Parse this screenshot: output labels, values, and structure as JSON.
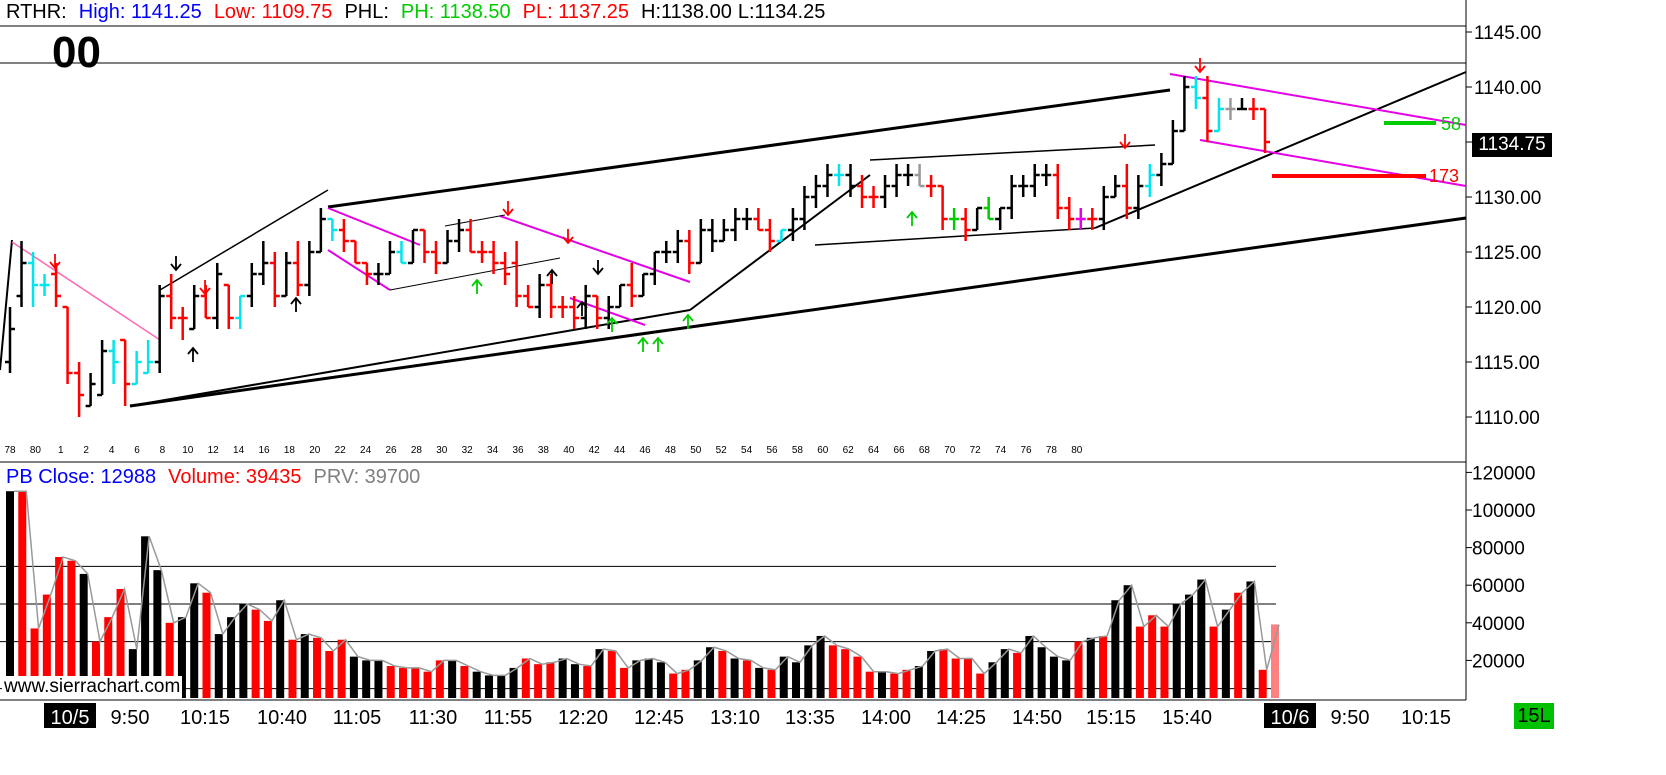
{
  "header": {
    "symbol": "RTHR:",
    "high": "High: 1141.25",
    "low": "Low: 1109.75",
    "phl": "PHL:",
    "ph": "PH: 1138.50",
    "pl": "PL: 1137.25",
    "h": "H:1138.00",
    "l": "L:1134.25"
  },
  "big_label": "00",
  "last_price": "1134.75",
  "annotations": {
    "green": "58",
    "red": "173"
  },
  "volume_header": {
    "pb_close": "PB Close: 12988",
    "volume": "Volume: 39435",
    "prv": "PRV: 39700"
  },
  "watermark": "www.sierrachart.com",
  "timeframe": "15L",
  "colors": {
    "up": "#000000",
    "down": "#ff0000",
    "inside": "#00e5ee",
    "outside": "#e600e6",
    "neutral": "#999999",
    "green": "#00cc00",
    "blue": "#0000ff"
  },
  "chart_data": [
    {
      "type": "ohlc",
      "y_ticks": [
        1145,
        1140,
        1135,
        1130,
        1125,
        1120,
        1115,
        1110
      ],
      "y_tick_labels": [
        "1145.00",
        "1140.00",
        "1135.00",
        "1130.00",
        "1125.00",
        "1120.00",
        "1115.00",
        "1110.00"
      ],
      "ylim": [
        1105.9,
        1147.1
      ],
      "bar_labels": [
        "78",
        "80",
        "1",
        "2",
        "4",
        "6",
        "8",
        "10",
        "12",
        "14",
        "16",
        "18",
        "20",
        "22",
        "24",
        "26",
        "28",
        "30",
        "32",
        "34",
        "36",
        "38",
        "40",
        "42",
        "44",
        "46",
        "48",
        "50",
        "52",
        "54",
        "56",
        "58",
        "60",
        "62",
        "64",
        "66",
        "68",
        "70",
        "72",
        "74",
        "76",
        "78",
        "80"
      ],
      "time_labels": [
        "10/5",
        "9:50",
        "10:15",
        "10:40",
        "11:05",
        "11:30",
        "11:55",
        "12:20",
        "12:45",
        "13:10",
        "13:35",
        "14:00",
        "14:25",
        "14:50",
        "15:15",
        "15:40",
        "10/6",
        "9:50",
        "10:15"
      ],
      "bars": [
        {
          "o": 1115,
          "h": 1120,
          "l": 1114,
          "c": 1118,
          "t": "up"
        },
        {
          "o": 1121,
          "h": 1126,
          "l": 1120,
          "c": 1124,
          "t": "up"
        },
        {
          "o": 1124,
          "h": 1125,
          "l": 1120,
          "c": 1122,
          "t": "inside"
        },
        {
          "o": 1122,
          "h": 1123,
          "l": 1121,
          "c": 1122,
          "t": "inside"
        },
        {
          "o": 1123,
          "h": 1124,
          "l": 1120,
          "c": 1121,
          "t": "down"
        },
        {
          "o": 1120,
          "h": 1120,
          "l": 1113,
          "c": 1114,
          "t": "down"
        },
        {
          "o": 1114,
          "h": 1115,
          "l": 1110,
          "c": 1112,
          "t": "down"
        },
        {
          "o": 1111,
          "h": 1114,
          "l": 1111,
          "c": 1113,
          "t": "up"
        },
        {
          "o": 1112,
          "h": 1117,
          "l": 1112,
          "c": 1116,
          "t": "up"
        },
        {
          "o": 1116,
          "h": 1117,
          "l": 1113,
          "c": 1115,
          "t": "inside"
        },
        {
          "o": 1117,
          "h": 1117,
          "l": 1111,
          "c": 1113,
          "t": "down"
        },
        {
          "o": 1113,
          "h": 1116,
          "l": 1113,
          "c": 1115,
          "t": "inside"
        },
        {
          "o": 1114,
          "h": 1117,
          "l": 1114,
          "c": 1115,
          "t": "inside"
        },
        {
          "o": 1115,
          "h": 1122,
          "l": 1114,
          "c": 1121,
          "t": "up"
        },
        {
          "o": 1121,
          "h": 1123,
          "l": 1118,
          "c": 1119,
          "t": "down"
        },
        {
          "o": 1119,
          "h": 1120,
          "l": 1117,
          "c": 1119,
          "t": "down"
        },
        {
          "o": 1118,
          "h": 1122,
          "l": 1118,
          "c": 1121,
          "t": "up"
        },
        {
          "o": 1121,
          "h": 1122,
          "l": 1119,
          "c": 1119,
          "t": "down"
        },
        {
          "o": 1119,
          "h": 1124,
          "l": 1118,
          "c": 1123,
          "t": "up"
        },
        {
          "o": 1122,
          "h": 1122,
          "l": 1118,
          "c": 1119,
          "t": "down"
        },
        {
          "o": 1119,
          "h": 1121,
          "l": 1118,
          "c": 1121,
          "t": "inside"
        },
        {
          "o": 1121,
          "h": 1124,
          "l": 1120,
          "c": 1123,
          "t": "up"
        },
        {
          "o": 1123,
          "h": 1126,
          "l": 1122,
          "c": 1124,
          "t": "up"
        },
        {
          "o": 1124,
          "h": 1125,
          "l": 1120,
          "c": 1121,
          "t": "down"
        },
        {
          "o": 1121,
          "h": 1125,
          "l": 1121,
          "c": 1124,
          "t": "up"
        },
        {
          "o": 1124,
          "h": 1126,
          "l": 1121,
          "c": 1122,
          "t": "down"
        },
        {
          "o": 1122,
          "h": 1126,
          "l": 1121,
          "c": 1125,
          "t": "up"
        },
        {
          "o": 1125,
          "h": 1129,
          "l": 1125,
          "c": 1128,
          "t": "up"
        },
        {
          "o": 1128,
          "h": 1128,
          "l": 1126,
          "c": 1127,
          "t": "inside"
        },
        {
          "o": 1127,
          "h": 1128,
          "l": 1125,
          "c": 1126,
          "t": "down"
        },
        {
          "o": 1126,
          "h": 1126,
          "l": 1124,
          "c": 1124,
          "t": "down"
        },
        {
          "o": 1124,
          "h": 1124,
          "l": 1122,
          "c": 1123,
          "t": "down"
        },
        {
          "o": 1123,
          "h": 1124,
          "l": 1122,
          "c": 1123,
          "t": "up"
        },
        {
          "o": 1123,
          "h": 1126,
          "l": 1123,
          "c": 1125,
          "t": "up"
        },
        {
          "o": 1125,
          "h": 1126,
          "l": 1124,
          "c": 1124,
          "t": "inside"
        },
        {
          "o": 1124,
          "h": 1127,
          "l": 1124,
          "c": 1127,
          "t": "up"
        },
        {
          "o": 1127,
          "h": 1127,
          "l": 1124,
          "c": 1125,
          "t": "down"
        },
        {
          "o": 1125,
          "h": 1126,
          "l": 1123,
          "c": 1124,
          "t": "down"
        },
        {
          "o": 1124,
          "h": 1127,
          "l": 1124,
          "c": 1126,
          "t": "up"
        },
        {
          "o": 1126,
          "h": 1128,
          "l": 1125,
          "c": 1127,
          "t": "up"
        },
        {
          "o": 1127,
          "h": 1128,
          "l": 1125,
          "c": 1125,
          "t": "down"
        },
        {
          "o": 1125,
          "h": 1126,
          "l": 1124,
          "c": 1125,
          "t": "down"
        },
        {
          "o": 1125,
          "h": 1126,
          "l": 1123,
          "c": 1124,
          "t": "down"
        },
        {
          "o": 1124,
          "h": 1125,
          "l": 1122,
          "c": 1123,
          "t": "down"
        },
        {
          "o": 1124,
          "h": 1126,
          "l": 1120,
          "c": 1121,
          "t": "down"
        },
        {
          "o": 1121,
          "h": 1122,
          "l": 1120,
          "c": 1120,
          "t": "down"
        },
        {
          "o": 1120,
          "h": 1123,
          "l": 1119,
          "c": 1122,
          "t": "up"
        },
        {
          "o": 1122,
          "h": 1123,
          "l": 1119,
          "c": 1120,
          "t": "down"
        },
        {
          "o": 1120,
          "h": 1121,
          "l": 1119,
          "c": 1120,
          "t": "down"
        },
        {
          "o": 1120,
          "h": 1121,
          "l": 1118,
          "c": 1119,
          "t": "down"
        },
        {
          "o": 1119,
          "h": 1122,
          "l": 1118,
          "c": 1121,
          "t": "up"
        },
        {
          "o": 1121,
          "h": 1121,
          "l": 1118,
          "c": 1119,
          "t": "down"
        },
        {
          "o": 1119,
          "h": 1121,
          "l": 1118,
          "c": 1120,
          "t": "up"
        },
        {
          "o": 1120,
          "h": 1122,
          "l": 1120,
          "c": 1122,
          "t": "up"
        },
        {
          "o": 1122,
          "h": 1124,
          "l": 1120,
          "c": 1121,
          "t": "down"
        },
        {
          "o": 1121,
          "h": 1123,
          "l": 1121,
          "c": 1123,
          "t": "up"
        },
        {
          "o": 1123,
          "h": 1125,
          "l": 1122,
          "c": 1125,
          "t": "up"
        },
        {
          "o": 1125,
          "h": 1126,
          "l": 1124,
          "c": 1125,
          "t": "up"
        },
        {
          "o": 1125,
          "h": 1127,
          "l": 1124,
          "c": 1126,
          "t": "up"
        },
        {
          "o": 1126,
          "h": 1127,
          "l": 1123,
          "c": 1124,
          "t": "down"
        },
        {
          "o": 1124,
          "h": 1128,
          "l": 1124,
          "c": 1127,
          "t": "up"
        },
        {
          "o": 1127,
          "h": 1128,
          "l": 1125,
          "c": 1126,
          "t": "up"
        },
        {
          "o": 1126,
          "h": 1128,
          "l": 1126,
          "c": 1127,
          "t": "up"
        },
        {
          "o": 1127,
          "h": 1129,
          "l": 1126,
          "c": 1128,
          "t": "up"
        },
        {
          "o": 1128,
          "h": 1129,
          "l": 1127,
          "c": 1128,
          "t": "up"
        },
        {
          "o": 1128,
          "h": 1129,
          "l": 1127,
          "c": 1127,
          "t": "down"
        },
        {
          "o": 1127,
          "h": 1128,
          "l": 1125,
          "c": 1126,
          "t": "down"
        },
        {
          "o": 1126,
          "h": 1127,
          "l": 1126,
          "c": 1127,
          "t": "inside"
        },
        {
          "o": 1127,
          "h": 1129,
          "l": 1126,
          "c": 1128,
          "t": "up"
        },
        {
          "o": 1128,
          "h": 1131,
          "l": 1127,
          "c": 1130,
          "t": "up"
        },
        {
          "o": 1130,
          "h": 1132,
          "l": 1129,
          "c": 1131,
          "t": "up"
        },
        {
          "o": 1131,
          "h": 1133,
          "l": 1130,
          "c": 1132,
          "t": "up"
        },
        {
          "o": 1132,
          "h": 1133,
          "l": 1131,
          "c": 1132,
          "t": "inside"
        },
        {
          "o": 1132,
          "h": 1133,
          "l": 1130,
          "c": 1131,
          "t": "up"
        },
        {
          "o": 1131,
          "h": 1132,
          "l": 1129,
          "c": 1130,
          "t": "down"
        },
        {
          "o": 1130,
          "h": 1131,
          "l": 1129,
          "c": 1130,
          "t": "down"
        },
        {
          "o": 1130,
          "h": 1132,
          "l": 1129,
          "c": 1131,
          "t": "up"
        },
        {
          "o": 1131,
          "h": 1133,
          "l": 1130,
          "c": 1132,
          "t": "up"
        },
        {
          "o": 1132,
          "h": 1133,
          "l": 1131,
          "c": 1132,
          "t": "up"
        },
        {
          "o": 1132,
          "h": 1133,
          "l": 1131,
          "c": 1131,
          "t": "neutral"
        },
        {
          "o": 1131,
          "h": 1132,
          "l": 1130,
          "c": 1131,
          "t": "down"
        },
        {
          "o": 1131,
          "h": 1131,
          "l": 1127,
          "c": 1128,
          "t": "down"
        },
        {
          "o": 1128,
          "h": 1129,
          "l": 1127,
          "c": 1128,
          "t": "green"
        },
        {
          "o": 1128,
          "h": 1129,
          "l": 1126,
          "c": 1127,
          "t": "down"
        },
        {
          "o": 1127,
          "h": 1129,
          "l": 1127,
          "c": 1129,
          "t": "up"
        },
        {
          "o": 1129,
          "h": 1130,
          "l": 1128,
          "c": 1128,
          "t": "green"
        },
        {
          "o": 1128,
          "h": 1129,
          "l": 1127,
          "c": 1129,
          "t": "up"
        },
        {
          "o": 1129,
          "h": 1132,
          "l": 1128,
          "c": 1131,
          "t": "up"
        },
        {
          "o": 1131,
          "h": 1132,
          "l": 1130,
          "c": 1131,
          "t": "up"
        },
        {
          "o": 1131,
          "h": 1133,
          "l": 1130,
          "c": 1132,
          "t": "up"
        },
        {
          "o": 1132,
          "h": 1133,
          "l": 1131,
          "c": 1132,
          "t": "up"
        },
        {
          "o": 1132,
          "h": 1133,
          "l": 1128,
          "c": 1129,
          "t": "down"
        },
        {
          "o": 1129,
          "h": 1130,
          "l": 1127,
          "c": 1128,
          "t": "down"
        },
        {
          "o": 1128,
          "h": 1129,
          "l": 1127,
          "c": 1128,
          "t": "outside"
        },
        {
          "o": 1128,
          "h": 1129,
          "l": 1127,
          "c": 1128,
          "t": "down"
        },
        {
          "o": 1128,
          "h": 1131,
          "l": 1127,
          "c": 1130,
          "t": "up"
        },
        {
          "o": 1130,
          "h": 1132,
          "l": 1130,
          "c": 1131,
          "t": "up"
        },
        {
          "o": 1131,
          "h": 1133,
          "l": 1128,
          "c": 1129,
          "t": "down"
        },
        {
          "o": 1129,
          "h": 1132,
          "l": 1128,
          "c": 1131,
          "t": "up"
        },
        {
          "o": 1131,
          "h": 1133,
          "l": 1130,
          "c": 1132,
          "t": "inside"
        },
        {
          "o": 1132,
          "h": 1134,
          "l": 1131,
          "c": 1133,
          "t": "up"
        },
        {
          "o": 1133,
          "h": 1137,
          "l": 1133,
          "c": 1136,
          "t": "up"
        },
        {
          "o": 1136,
          "h": 1141,
          "l": 1136,
          "c": 1140,
          "t": "up"
        },
        {
          "o": 1140,
          "h": 1141,
          "l": 1138,
          "c": 1139,
          "t": "inside"
        },
        {
          "o": 1139,
          "h": 1141,
          "l": 1135,
          "c": 1136,
          "t": "down"
        },
        {
          "o": 1136,
          "h": 1139,
          "l": 1136,
          "c": 1138,
          "t": "inside"
        },
        {
          "o": 1138,
          "h": 1139,
          "l": 1137,
          "c": 1138,
          "t": "neutral"
        },
        {
          "o": 1138,
          "h": 1139,
          "l": 1138,
          "c": 1138,
          "t": "up"
        },
        {
          "o": 1138,
          "h": 1139,
          "l": 1137,
          "c": 1138,
          "t": "down"
        },
        {
          "o": 1138,
          "h": 1138,
          "l": 1134,
          "c": 1135,
          "t": "down"
        }
      ]
    },
    {
      "type": "bar",
      "y_ticks": [
        120000,
        100000,
        80000,
        60000,
        40000,
        20000
      ],
      "y_tick_labels": [
        "120000",
        "100000",
        "80000",
        "60000",
        "40000",
        "20000"
      ],
      "ylim": [
        0,
        120000
      ],
      "reference_levels": [
        70000,
        50000,
        30000,
        5000
      ],
      "volumes": [
        110000,
        110000,
        37000,
        55000,
        75000,
        73000,
        66000,
        30000,
        43000,
        58000,
        26000,
        86000,
        68000,
        40000,
        43000,
        61000,
        56000,
        34000,
        43000,
        50000,
        47000,
        41000,
        52000,
        31000,
        34000,
        32000,
        25000,
        31000,
        22000,
        20000,
        20000,
        17000,
        16000,
        16000,
        14000,
        20000,
        20000,
        17000,
        14000,
        12000,
        12000,
        16000,
        21000,
        18000,
        19000,
        21000,
        18000,
        17000,
        26000,
        25000,
        16000,
        20000,
        21000,
        19000,
        13000,
        15000,
        20000,
        27000,
        25000,
        21000,
        20000,
        16000,
        15000,
        22000,
        19000,
        28000,
        33000,
        28000,
        26000,
        22000,
        14000,
        14000,
        13000,
        15000,
        17000,
        25000,
        26000,
        21000,
        21000,
        13000,
        19000,
        26000,
        24000,
        33000,
        27000,
        22000,
        20000,
        30000,
        32000,
        33000,
        52000,
        60000,
        38000,
        44000,
        38000,
        50000,
        55000,
        63000,
        38000,
        47000,
        56000,
        62000,
        15000,
        39000
      ],
      "volume_dir": [
        "up",
        "down",
        "down",
        "down",
        "down",
        "down",
        "up",
        "down",
        "down",
        "down",
        "up",
        "up",
        "up",
        "down",
        "up",
        "up",
        "down",
        "up",
        "up",
        "up",
        "down",
        "down",
        "up",
        "down",
        "up",
        "down",
        "down",
        "down",
        "up",
        "up",
        "up",
        "down",
        "down",
        "down",
        "down",
        "down",
        "up",
        "down",
        "up",
        "up",
        "up",
        "up",
        "down",
        "down",
        "down",
        "up",
        "up",
        "down",
        "up",
        "down",
        "down",
        "up",
        "up",
        "up",
        "down",
        "down",
        "up",
        "up",
        "down",
        "up",
        "down",
        "up",
        "down",
        "up",
        "up",
        "up",
        "up",
        "down",
        "down",
        "down",
        "down",
        "up",
        "down",
        "down",
        "up",
        "up",
        "down",
        "down",
        "down",
        "down",
        "up",
        "up",
        "down",
        "up",
        "up",
        "up",
        "up",
        "down",
        "up",
        "down",
        "up",
        "up",
        "down",
        "down",
        "down",
        "up",
        "up",
        "up",
        "down",
        "up",
        "down",
        "up",
        "down",
        "down"
      ]
    }
  ]
}
